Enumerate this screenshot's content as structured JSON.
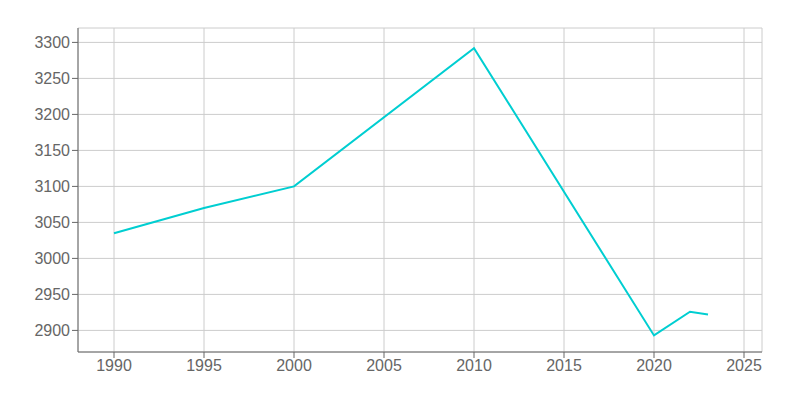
{
  "chart_data": {
    "type": "line",
    "x": [
      1990,
      1995,
      2000,
      2010,
      2020,
      2022,
      2023
    ],
    "values": [
      3035,
      3070,
      3100,
      3292,
      2893,
      2926,
      2922
    ],
    "color": "#00CED1",
    "xlim": [
      1988,
      2026
    ],
    "ylim": [
      2870,
      3320
    ],
    "xticks": [
      1990,
      1995,
      2000,
      2005,
      2010,
      2015,
      2020,
      2025
    ],
    "yticks": [
      2900,
      2950,
      3000,
      3050,
      3100,
      3150,
      3200,
      3250,
      3300
    ],
    "grid": true
  }
}
